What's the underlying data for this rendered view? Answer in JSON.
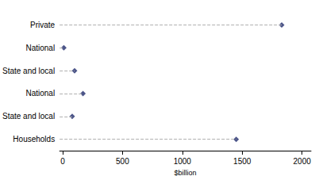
{
  "chart_data": {
    "type": "dot",
    "orientation": "horizontal",
    "categories": [
      "Private",
      "National",
      "State and local",
      "National",
      "State and local",
      "Households"
    ],
    "values": [
      1830,
      10,
      100,
      170,
      80,
      1450
    ],
    "color": "#1f2a6b",
    "marker": "diamond",
    "line_style": "dashed",
    "xlabel": "$billion",
    "xlim": [
      -25,
      2075
    ],
    "xticks": [
      0,
      500,
      1000,
      1500,
      2000
    ],
    "grid": false
  }
}
